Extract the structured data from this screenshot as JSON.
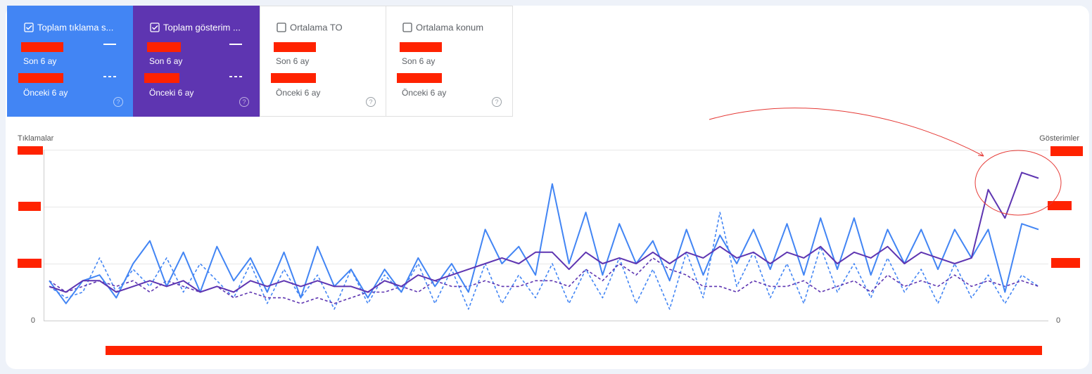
{
  "cards": [
    {
      "label": "Toplam tıklama s...",
      "checked": true,
      "current": "Son 6 ay",
      "previous": "Önceki 6 ay"
    },
    {
      "label": "Toplam gösterim ...",
      "checked": true,
      "current": "Son 6 ay",
      "previous": "Önceki 6 ay"
    },
    {
      "label": "Ortalama TO",
      "checked": false,
      "current": "Son 6 ay",
      "previous": "Önceki 6 ay"
    },
    {
      "label": "Ortalama konum",
      "checked": false,
      "current": "Son 6 ay",
      "previous": "Önceki 6 ay"
    }
  ],
  "chart_data": {
    "type": "line",
    "y_label": "Tıklamalar",
    "y2_label": "Gösterimler",
    "ylim": [
      0,
      3
    ],
    "yticks": [
      0
    ],
    "y2lim": [
      0,
      3
    ],
    "y2ticks": [
      0
    ],
    "series": [
      {
        "color": "#4285f4",
        "dashed": true,
        "values": [
          0.6,
          0.4,
          0.5,
          1.1,
          0.5,
          0.9,
          0.6,
          1.1,
          0.5,
          1.0,
          0.7,
          0.4,
          1.0,
          0.3,
          0.9,
          0.4,
          0.8,
          0.2,
          0.9,
          0.3,
          0.8,
          0.5,
          1.0,
          0.3,
          0.9,
          0.2,
          1.0,
          0.3,
          0.8,
          0.4,
          1.0,
          0.3,
          0.9,
          0.4,
          1.1,
          0.3,
          0.9,
          0.2,
          1.2,
          0.4,
          1.9,
          0.6,
          1.2,
          0.4,
          1.0,
          0.3,
          1.3,
          0.5,
          1.0,
          0.4,
          1.1,
          0.5,
          0.9,
          0.3,
          1.0,
          0.4,
          0.8,
          0.3,
          0.8,
          0.6
        ]
      },
      {
        "color": "#5e35b1",
        "dashed": true,
        "axis": "y2",
        "values": [
          0.7,
          0.5,
          0.6,
          0.7,
          0.6,
          0.7,
          0.5,
          0.7,
          0.6,
          0.5,
          0.6,
          0.4,
          0.5,
          0.4,
          0.4,
          0.3,
          0.4,
          0.3,
          0.4,
          0.5,
          0.5,
          0.6,
          0.5,
          0.7,
          0.6,
          0.6,
          0.7,
          0.6,
          0.6,
          0.7,
          0.7,
          0.6,
          0.9,
          0.7,
          1.0,
          0.8,
          1.1,
          0.9,
          0.8,
          0.6,
          0.6,
          0.5,
          0.7,
          0.6,
          0.6,
          0.7,
          0.5,
          0.6,
          0.7,
          0.5,
          0.8,
          0.6,
          0.7,
          0.6,
          0.8,
          0.6,
          0.7,
          0.6,
          0.7,
          0.6
        ]
      },
      {
        "color": "#4285f4",
        "dashed": false,
        "values": [
          0.7,
          0.3,
          0.7,
          0.8,
          0.4,
          1.0,
          1.4,
          0.6,
          1.2,
          0.5,
          1.3,
          0.7,
          1.1,
          0.5,
          1.2,
          0.4,
          1.3,
          0.6,
          0.9,
          0.4,
          0.9,
          0.5,
          1.1,
          0.6,
          1.0,
          0.5,
          1.6,
          1.0,
          1.3,
          0.8,
          2.4,
          1.0,
          1.9,
          0.8,
          1.7,
          1.0,
          1.4,
          0.7,
          1.6,
          0.8,
          1.5,
          1.0,
          1.6,
          0.9,
          1.7,
          0.8,
          1.8,
          0.9,
          1.8,
          0.8,
          1.6,
          1.0,
          1.6,
          0.9,
          1.6,
          1.1,
          1.6,
          0.5,
          1.7,
          1.6
        ]
      },
      {
        "color": "#5e35b1",
        "dashed": false,
        "axis": "y2",
        "values": [
          0.6,
          0.5,
          0.7,
          0.7,
          0.5,
          0.6,
          0.7,
          0.6,
          0.7,
          0.5,
          0.6,
          0.5,
          0.7,
          0.6,
          0.7,
          0.6,
          0.7,
          0.6,
          0.6,
          0.5,
          0.7,
          0.6,
          0.8,
          0.7,
          0.8,
          0.9,
          1.0,
          1.1,
          1.0,
          1.2,
          1.2,
          0.9,
          1.2,
          1.0,
          1.1,
          1.0,
          1.2,
          1.0,
          1.2,
          1.1,
          1.3,
          1.1,
          1.2,
          1.0,
          1.2,
          1.1,
          1.3,
          1.0,
          1.2,
          1.1,
          1.3,
          1.0,
          1.2,
          1.1,
          1.0,
          1.1,
          2.3,
          1.8,
          2.6,
          2.5
        ]
      }
    ]
  }
}
